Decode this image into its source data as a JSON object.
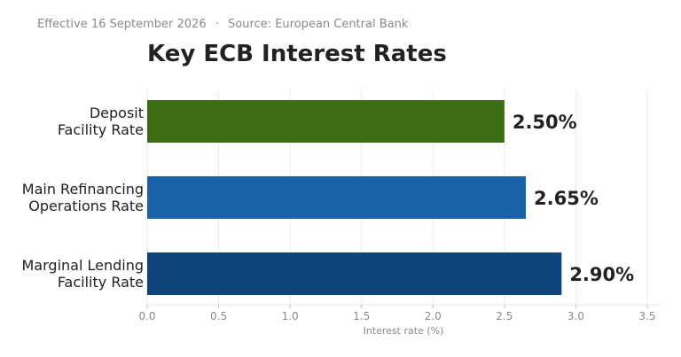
{
  "header": {
    "effective": "Effective 16 September 2026",
    "separator": "·",
    "source": "Source: European Central Bank"
  },
  "chart_data": {
    "type": "bar",
    "orientation": "horizontal",
    "title": "Key ECB Interest Rates",
    "xlabel": "Interest rate (%)",
    "ylabel": "",
    "xlim": [
      0,
      3.5
    ],
    "xticks": [
      0.0,
      0.5,
      1.0,
      1.5,
      2.0,
      2.5,
      3.0,
      3.5
    ],
    "xtick_labels": [
      "0.0",
      "0.5",
      "1.0",
      "1.5",
      "2.0",
      "2.5",
      "3.0",
      "3.5"
    ],
    "grid": "vertical",
    "categories": [
      [
        "Deposit",
        "Facility Rate"
      ],
      [
        "Main Refinancing",
        "Operations Rate"
      ],
      [
        "Marginal Lending",
        "Facility Rate"
      ]
    ],
    "values": [
      2.5,
      2.65,
      2.9
    ],
    "value_labels": [
      "2.50%",
      "2.65%",
      "2.90%"
    ],
    "colors": [
      "#3b6e12",
      "#1b63a8",
      "#0d4479"
    ]
  }
}
